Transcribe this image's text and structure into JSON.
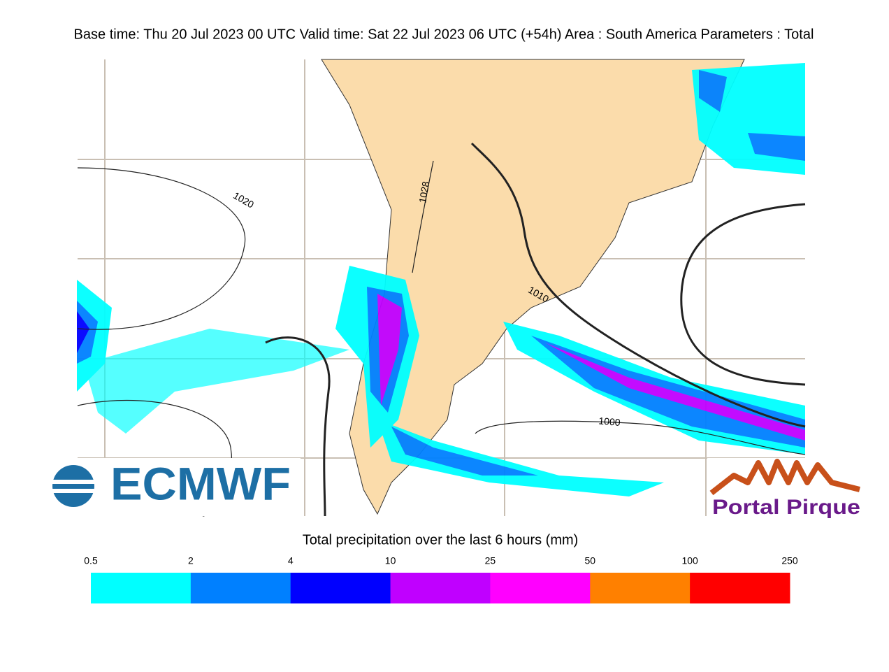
{
  "header": {
    "title": "Base time: Thu 20 Jul 2023 00 UTC Valid time: Sat 22 Jul 2023 06 UTC (+54h) Area : South America Parameters : Total"
  },
  "map": {
    "isobar_labels": [
      "1020",
      "1028",
      "1010",
      "1000"
    ]
  },
  "logos": {
    "left": "ECMWF",
    "right": "Portal Pirque"
  },
  "legend": {
    "title": "Total precipitation over the last 6 hours (mm)",
    "ticks": [
      "0.5",
      "2",
      "4",
      "10",
      "25",
      "50",
      "100",
      "250"
    ],
    "colors": [
      "#00ffff",
      "#0080ff",
      "#0000ff",
      "#c000ff",
      "#ff00ff",
      "#ff8000",
      "#ff0000"
    ]
  }
}
